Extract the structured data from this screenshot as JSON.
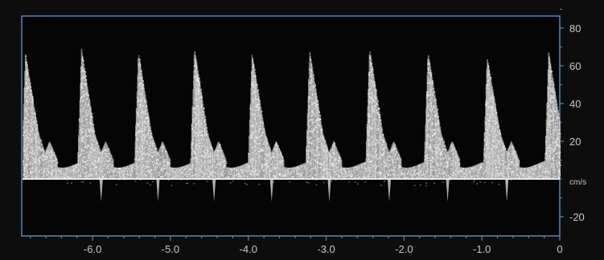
{
  "display": {
    "type": "spectral-doppler",
    "colors": {
      "background": "#0d0d0d",
      "frame": "#5b87b8",
      "baseline": "#e8e8e8",
      "signal": "#d9d9d9",
      "text": "#c8c8c8"
    }
  },
  "velocity_scale": {
    "unit": "cm/s",
    "ticks": [
      "80",
      "60",
      "40",
      "20",
      "-20"
    ]
  },
  "time_axis": {
    "ticks": [
      "-6.0",
      "-5.0",
      "-4.0",
      "-3.0",
      "-2.0",
      "-1.0",
      "0"
    ],
    "range": [
      -6.9,
      0
    ]
  },
  "chart_data": {
    "type": "line",
    "title": "",
    "xlabel": "",
    "ylabel": "cm/s",
    "xlim": [
      -6.9,
      0
    ],
    "ylim": [
      -30,
      95
    ],
    "grid": false,
    "legend": "none",
    "series": [
      {
        "peak_times": [
          -6.15,
          -5.42,
          -4.7,
          -3.96,
          -3.22,
          -2.45,
          -1.7,
          -0.94,
          -0.15
        ],
        "peak_velocities": [
          69,
          67,
          69,
          66,
          68,
          69,
          67,
          64,
          67
        ],
        "diastolic_velocity": 8,
        "reverse_velocity": -12
      }
    ]
  }
}
